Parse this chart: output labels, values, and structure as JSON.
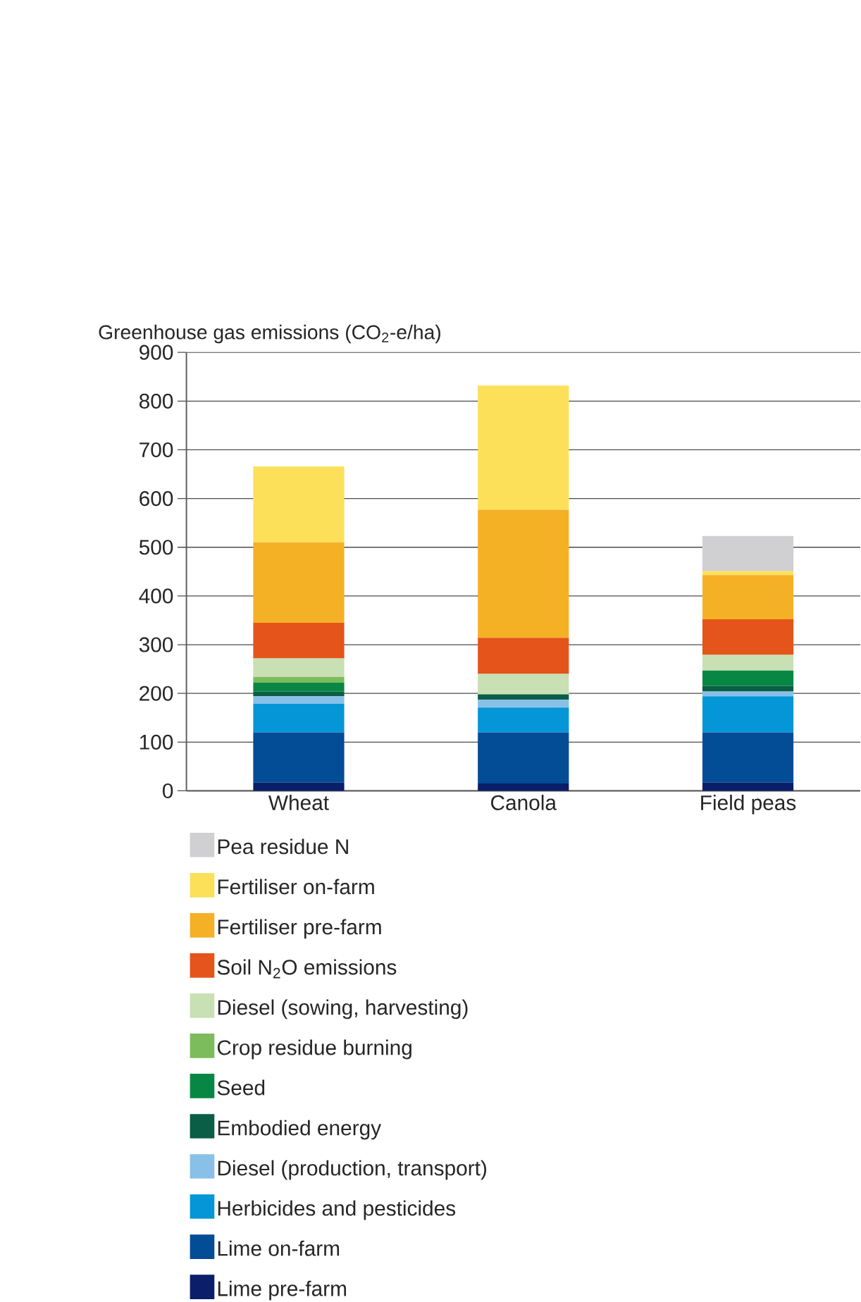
{
  "chart_data": {
    "type": "bar",
    "stacked": true,
    "ylabel": "Greenhouse gas emissions (CO$_{2}$-e/ha)",
    "categories": [
      "Wheat",
      "Canola",
      "Field peas"
    ],
    "ylim": [
      0,
      900
    ],
    "yticks": [
      0,
      100,
      200,
      300,
      400,
      500,
      600,
      700,
      800,
      900
    ],
    "grid": "y",
    "legend": "bottom",
    "series": [
      {
        "name": "Lime pre-farm",
        "color": "#0a1e6a",
        "values": [
          17,
          15,
          17
        ]
      },
      {
        "name": "Lime on-farm",
        "color": "#034c96",
        "values": [
          103,
          105,
          103
        ]
      },
      {
        "name": "Herbicides and pesticides",
        "color": "#0496d6",
        "values": [
          59,
          51,
          74
        ]
      },
      {
        "name": "Diesel (production, transport)",
        "color": "#88c0e8",
        "values": [
          15,
          16,
          10
        ]
      },
      {
        "name": "Embodied energy",
        "color": "#0a5e45",
        "values": [
          10,
          11,
          11
        ]
      },
      {
        "name": "Seed",
        "color": "#088744",
        "values": [
          18,
          0,
          32
        ]
      },
      {
        "name": "Crop residue burning",
        "color": "#7cbc5c",
        "values": [
          12,
          0,
          0
        ]
      },
      {
        "name": "Diesel (sowing, harvesting)",
        "color": "#c8e0b4",
        "values": [
          38,
          42,
          32
        ]
      },
      {
        "name": "Soil N$_{2}$O emissions",
        "color": "#e5541a",
        "values": [
          73,
          74,
          73
        ]
      },
      {
        "name": "Fertiliser pre-farm",
        "color": "#f5b125",
        "values": [
          165,
          263,
          91
        ]
      },
      {
        "name": "Fertiliser on-farm",
        "color": "#fde05a",
        "values": [
          156,
          255,
          8
        ]
      },
      {
        "name": "Pea residue N",
        "color": "#d0d0d2",
        "values": [
          0,
          0,
          72
        ]
      }
    ]
  }
}
